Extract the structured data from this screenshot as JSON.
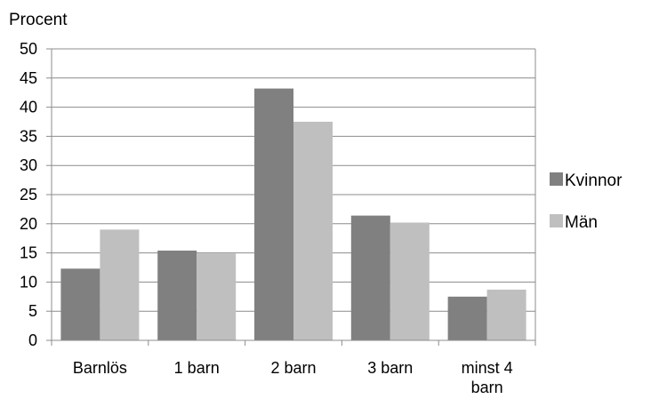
{
  "chart_data": {
    "type": "bar",
    "ylabel": "Procent",
    "ylim": [
      0,
      50
    ],
    "yticks": [
      0,
      5,
      10,
      15,
      20,
      25,
      30,
      35,
      40,
      45,
      50
    ],
    "grid": true,
    "legend_position": "right",
    "categories": [
      "Barnlös",
      "1 barn",
      "2 barn",
      "3 barn",
      "minst 4 barn"
    ],
    "series": [
      {
        "name": "Kvinnor",
        "color": "#808080",
        "values": [
          12.3,
          15.4,
          43.2,
          21.4,
          7.5
        ]
      },
      {
        "name": "Män",
        "color": "#bfbfbf",
        "values": [
          19.0,
          14.9,
          37.5,
          20.2,
          8.7
        ]
      }
    ]
  }
}
